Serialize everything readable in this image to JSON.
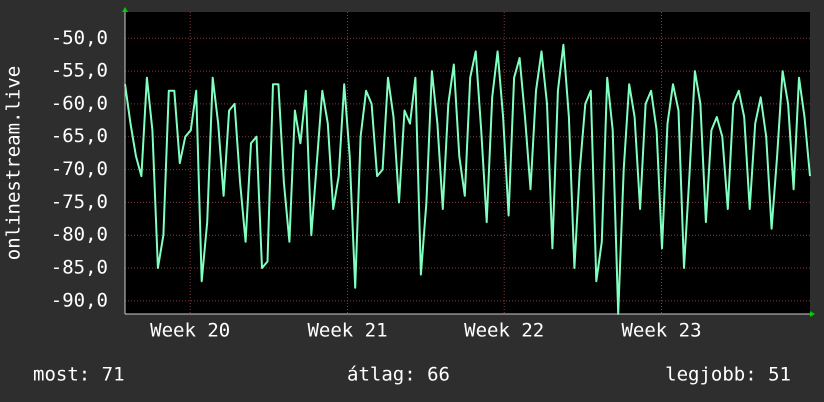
{
  "chart_data": {
    "type": "line",
    "y_label": "onlinestream.live",
    "ylim": [
      -92,
      -46
    ],
    "yticks": [
      {
        "value": -50,
        "label": "-50,0"
      },
      {
        "value": -55,
        "label": "-55,0"
      },
      {
        "value": -60,
        "label": "-60,0"
      },
      {
        "value": -65,
        "label": "-65,0"
      },
      {
        "value": -70,
        "label": "-70,0"
      },
      {
        "value": -75,
        "label": "-75,0"
      },
      {
        "value": -80,
        "label": "-80,0"
      },
      {
        "value": -85,
        "label": "-85,0"
      },
      {
        "value": -90,
        "label": "-90,0"
      }
    ],
    "xlim": [
      0,
      125
    ],
    "xticks": [
      {
        "value": 11.9,
        "label": "Week 20"
      },
      {
        "value": 40.6,
        "label": "Week 21"
      },
      {
        "value": 69.2,
        "label": "Week 22"
      },
      {
        "value": 97.9,
        "label": "Week 23"
      }
    ],
    "grid": true,
    "series": [
      {
        "color": "#80ffc0",
        "values": [
          -57,
          -63,
          -68,
          -71,
          -56,
          -64,
          -85,
          -80,
          -58,
          -58,
          -69,
          -65,
          -64,
          -58,
          -87,
          -78,
          -56,
          -63,
          -74,
          -61,
          -60,
          -72,
          -81,
          -66,
          -65,
          -85,
          -84,
          -57,
          -57,
          -72,
          -81,
          -61,
          -66,
          -58,
          -80,
          -69,
          -58,
          -63,
          -76,
          -71,
          -57,
          -68,
          -88,
          -65,
          -58,
          -60,
          -71,
          -70,
          -56,
          -62,
          -75,
          -61,
          -63,
          -56,
          -86,
          -75,
          -55,
          -63,
          -76,
          -60,
          -54,
          -68,
          -74,
          -56,
          -52,
          -64,
          -78,
          -59,
          -52,
          -62,
          -77,
          -56,
          -53,
          -62,
          -73,
          -58,
          -52,
          -60,
          -82,
          -58,
          -51,
          -62,
          -85,
          -70,
          -60,
          -58,
          -87,
          -81,
          -56,
          -64,
          -92,
          -70,
          -57,
          -62,
          -76,
          -60,
          -58,
          -64,
          -82,
          -63,
          -57,
          -61,
          -85,
          -71,
          -55,
          -60,
          -78,
          -64,
          -62,
          -65,
          -76,
          -60,
          -58,
          -62,
          -76,
          -63,
          -59,
          -65,
          -79,
          -68,
          -55,
          -60,
          -73,
          -56,
          -62,
          -71
        ]
      }
    ],
    "footer": {
      "current": "most: 71",
      "average": "átlag: 66",
      "best": "legjobb: 51"
    }
  }
}
